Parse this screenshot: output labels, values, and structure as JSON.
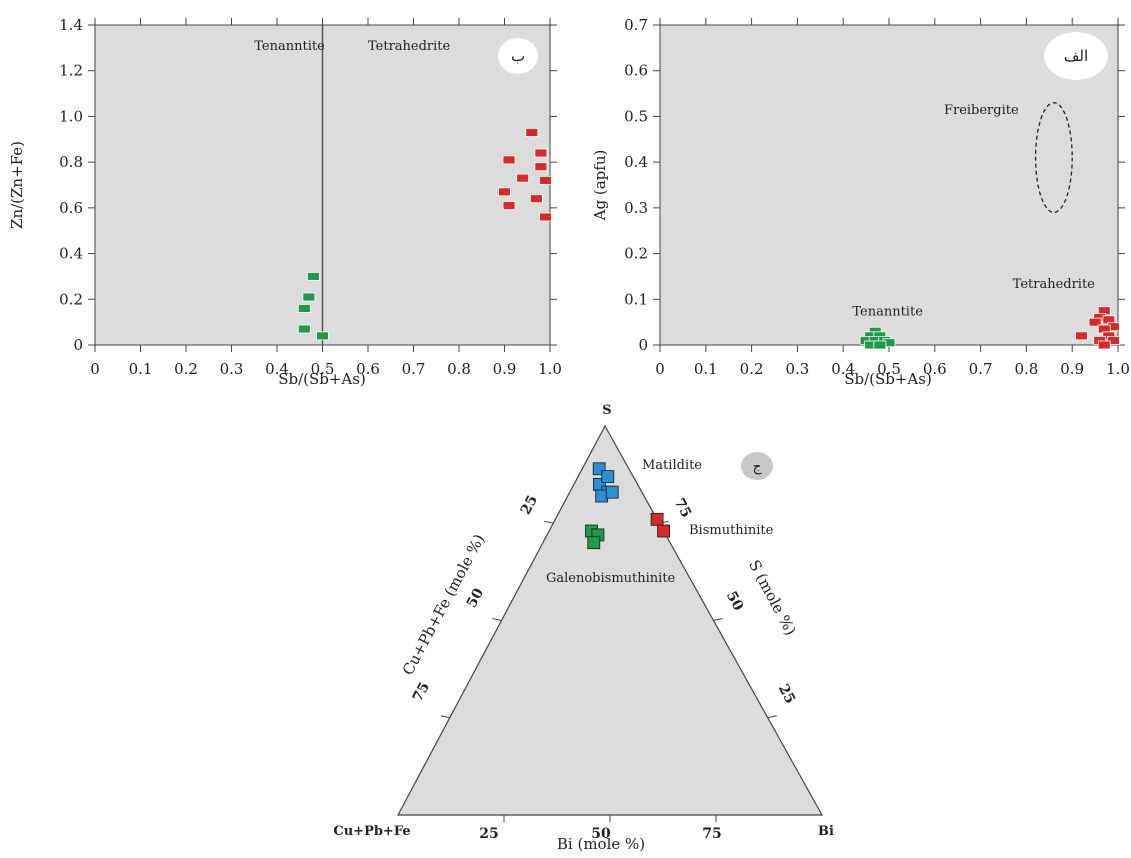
{
  "chart_data": [
    {
      "type": "scatter",
      "panel_label": "ب",
      "xlabel": "Sb/(Sb+As)",
      "ylabel": "Zn/(Zn+Fe)",
      "xlim": [
        0,
        1.0
      ],
      "ylim": [
        0,
        1.4
      ],
      "x_ticks": [
        0,
        0.1,
        0.2,
        0.3,
        0.4,
        0.5,
        0.6,
        0.7,
        0.8,
        0.9,
        1.0
      ],
      "x_tick_labels": [
        "0",
        "0.1",
        "0.2",
        "0.3",
        "0.4",
        "0.5",
        "0.6",
        "0.7",
        "0.8",
        "0.9",
        "1.0"
      ],
      "y_ticks": [
        0,
        0.2,
        0.4,
        0.6,
        0.8,
        1.0,
        1.2,
        1.4
      ],
      "y_tick_labels": [
        "0",
        "0.2",
        "0.4",
        "0.6",
        "0.8",
        "1.0",
        "1.2",
        "1.4"
      ],
      "divider_x": 0.5,
      "annotations": [
        {
          "text": "Tenanntite",
          "x": 0.35,
          "y": 1.29
        },
        {
          "text": "Tetrahedrite",
          "x": 0.6,
          "y": 1.29
        }
      ],
      "series": [
        {
          "color": "#1e9a4a",
          "points": [
            [
              0.48,
              0.3
            ],
            [
              0.47,
              0.21
            ],
            [
              0.46,
              0.16
            ],
            [
              0.46,
              0.07
            ],
            [
              0.5,
              0.04
            ]
          ]
        },
        {
          "color": "#d62a2a",
          "points": [
            [
              0.96,
              0.93
            ],
            [
              0.91,
              0.81
            ],
            [
              0.98,
              0.84
            ],
            [
              0.98,
              0.78
            ],
            [
              0.94,
              0.73
            ],
            [
              0.9,
              0.67
            ],
            [
              0.99,
              0.72
            ],
            [
              0.91,
              0.61
            ],
            [
              0.97,
              0.64
            ],
            [
              0.99,
              0.56
            ]
          ]
        }
      ]
    },
    {
      "type": "scatter",
      "panel_label": "الف",
      "xlabel": "Sb/(Sb+As)",
      "ylabel": "Ag (apfu)",
      "xlim": [
        0,
        1.0
      ],
      "ylim": [
        0,
        0.7
      ],
      "x_ticks": [
        0,
        0.1,
        0.2,
        0.3,
        0.4,
        0.5,
        0.6,
        0.7,
        0.8,
        0.9,
        1.0
      ],
      "x_tick_labels": [
        "0",
        "0.1",
        "0.2",
        "0.3",
        "0.4",
        "0.5",
        "0.6",
        "0.7",
        "0.8",
        "0.9",
        "1.0"
      ],
      "y_ticks": [
        0,
        0.1,
        0.2,
        0.3,
        0.4,
        0.5,
        0.6,
        0.7
      ],
      "y_tick_labels": [
        "0",
        "0.1",
        "0.2",
        "0.3",
        "0.4",
        "0.5",
        "0.6",
        "0.7"
      ],
      "field": {
        "name": "Freibergite",
        "cx": 0.86,
        "cy": 0.41,
        "rx": 0.04,
        "ry": 0.12
      },
      "annotations": [
        {
          "text": "Freibergite",
          "x": 0.62,
          "y": 0.505
        },
        {
          "text": "Tenanntite",
          "x": 0.42,
          "y": 0.065
        },
        {
          "text": "Tetrahedrite",
          "x": 0.77,
          "y": 0.125
        }
      ],
      "series": [
        {
          "color": "#1e9a4a",
          "points": [
            [
              0.47,
              0.03
            ],
            [
              0.46,
              0.02
            ],
            [
              0.48,
              0.02
            ],
            [
              0.45,
              0.01
            ],
            [
              0.47,
              0.01
            ],
            [
              0.49,
              0.01
            ],
            [
              0.5,
              0.005
            ],
            [
              0.46,
              0.0
            ],
            [
              0.48,
              0.0
            ]
          ]
        },
        {
          "color": "#d62a2a",
          "points": [
            [
              0.97,
              0.075
            ],
            [
              0.96,
              0.06
            ],
            [
              0.98,
              0.055
            ],
            [
              0.95,
              0.05
            ],
            [
              0.99,
              0.04
            ],
            [
              0.97,
              0.035
            ],
            [
              0.92,
              0.02
            ],
            [
              0.98,
              0.02
            ],
            [
              0.96,
              0.01
            ],
            [
              0.99,
              0.01
            ],
            [
              0.97,
              0.0
            ]
          ]
        }
      ]
    },
    {
      "type": "ternary",
      "panel_label": "ج",
      "corners": {
        "top": "S",
        "left": "Cu+Pb+Fe",
        "right": "Bi"
      },
      "axis_labels": {
        "left": "Cu+Pb+Fe (mole %)",
        "right": "S (mole %)",
        "bottom": "Bi (mole %)"
      },
      "left_tick_labels": [
        "25",
        "50",
        "75"
      ],
      "right_tick_labels": [
        "75",
        "50",
        "25"
      ],
      "bottom_tick_labels": [
        "25",
        "50",
        "75"
      ],
      "fields": [
        {
          "name": "Matildite",
          "color": "#2a8fd4",
          "points": [
            [
              0.07,
              0.04
            ],
            [
              0.09,
              0.06
            ],
            [
              0.06,
              0.07
            ],
            [
              0.08,
              0.09
            ],
            [
              0.1,
              0.08
            ],
            [
              0.07,
              0.1
            ]
          ]
        },
        {
          "name": "Bismuthinite",
          "color": "#d62a2a",
          "points": [
            [
              0.0,
              0.24
            ],
            [
              0.0,
              0.27
            ]
          ]
        },
        {
          "name": "Galenobismuthinite",
          "color": "#1e9a4a",
          "points": [
            [
              0.17,
              0.1
            ],
            [
              0.16,
              0.12
            ],
            [
              0.18,
              0.12
            ]
          ]
        }
      ]
    }
  ]
}
